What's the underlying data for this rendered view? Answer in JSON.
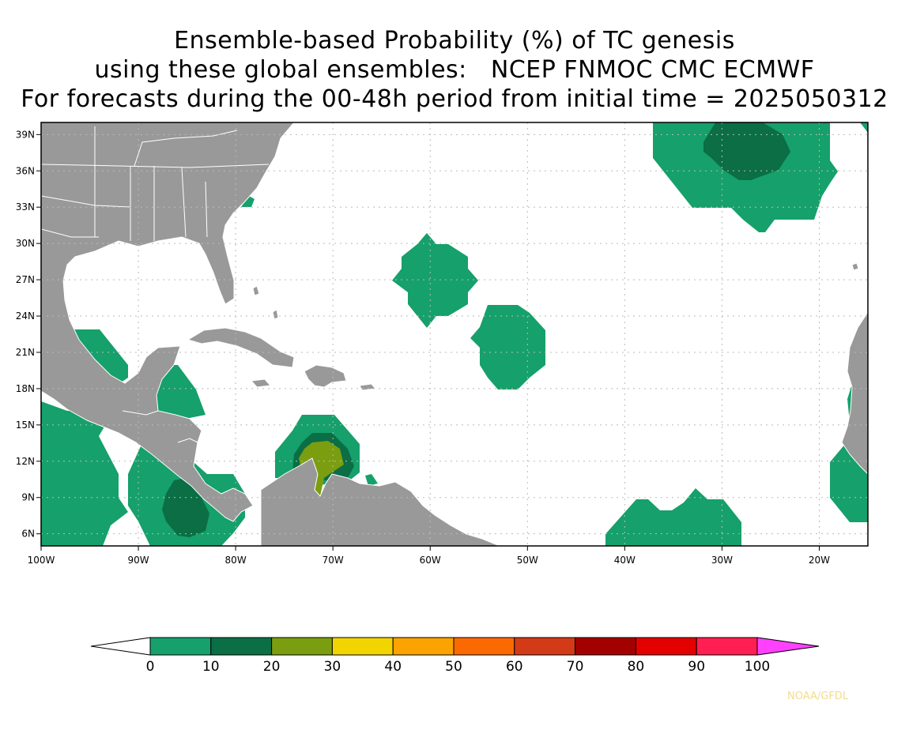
{
  "title": {
    "line1": "Ensemble-based Probability (%) of TC genesis",
    "line2": "using these global ensembles:   NCEP FNMOC CMC ECMWF",
    "line3": "For forecasts during the 00-48h period from initial time = 2025050312"
  },
  "map": {
    "lon_range": [
      -100,
      -15
    ],
    "lat_range": [
      5,
      40
    ],
    "lon_labels": [
      "100W",
      "90W",
      "80W",
      "70W",
      "60W",
      "50W",
      "40W",
      "30W",
      "20W"
    ],
    "lat_labels": [
      "39N",
      "36N",
      "33N",
      "30N",
      "27N",
      "24N",
      "21N",
      "18N",
      "15N",
      "12N",
      "9N",
      "6N"
    ],
    "colors": {
      "land": "#999999",
      "ocean": "#ffffff",
      "grid": "#bbbbbb",
      "p0_10": "#16a06b",
      "p10_20": "#0b6e45",
      "p20_30": "#7a9e10"
    }
  },
  "colorbar": {
    "labels": [
      "0",
      "10",
      "20",
      "30",
      "40",
      "50",
      "60",
      "70",
      "80",
      "90",
      "100"
    ],
    "colors": [
      "#16a06b",
      "#0b6e45",
      "#7a9e10",
      "#f2d500",
      "#fba300",
      "#fb6a00",
      "#d33a17",
      "#a30000",
      "#e50000",
      "#ff1f52"
    ],
    "under_color": "#ffffff",
    "over_color": "#ff40ff"
  },
  "credit": "NOAA/GFDL"
}
